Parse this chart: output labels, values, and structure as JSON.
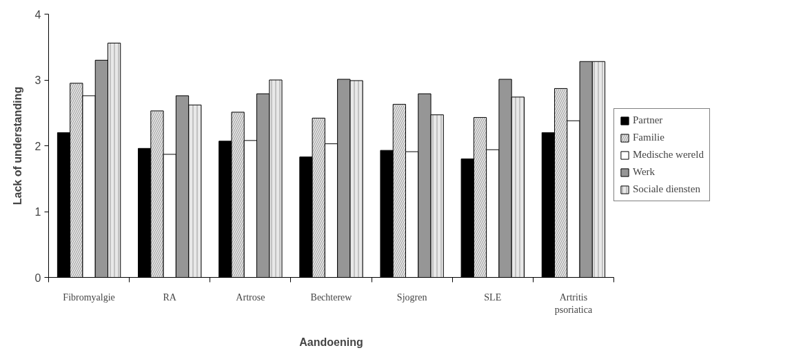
{
  "chart_data": {
    "type": "bar",
    "xlabel": "Aandoening",
    "ylabel": "Lack of understanding",
    "categories": [
      "Fibromyalgie",
      "RA",
      "Artrose",
      "Bechterew",
      "Sjogren",
      "SLE",
      "Artritis\npsoriatica"
    ],
    "series": [
      {
        "name": "Partner",
        "color": "#000000",
        "values": [
          2.2,
          1.96,
          2.07,
          1.83,
          1.93,
          1.8,
          2.2
        ]
      },
      {
        "name": "Familie",
        "color": "#e4e4e4",
        "values": [
          2.95,
          2.53,
          2.51,
          2.42,
          2.63,
          2.43,
          2.87
        ]
      },
      {
        "name": "Medische wereld",
        "color": "#ffffff",
        "values": [
          2.76,
          1.87,
          2.08,
          2.03,
          1.91,
          1.94,
          2.38
        ]
      },
      {
        "name": "Werk",
        "color": "#969696",
        "values": [
          3.3,
          2.76,
          2.79,
          3.01,
          2.79,
          3.01,
          3.28
        ]
      },
      {
        "name": "Sociale diensten",
        "color": "#e8e8e8",
        "values": [
          3.56,
          2.62,
          3.0,
          2.99,
          2.47,
          2.74,
          3.28
        ]
      }
    ],
    "ylim": [
      0,
      4
    ],
    "yticks": [
      0,
      1,
      2,
      3,
      4
    ],
    "grid": false,
    "legend": "right"
  }
}
